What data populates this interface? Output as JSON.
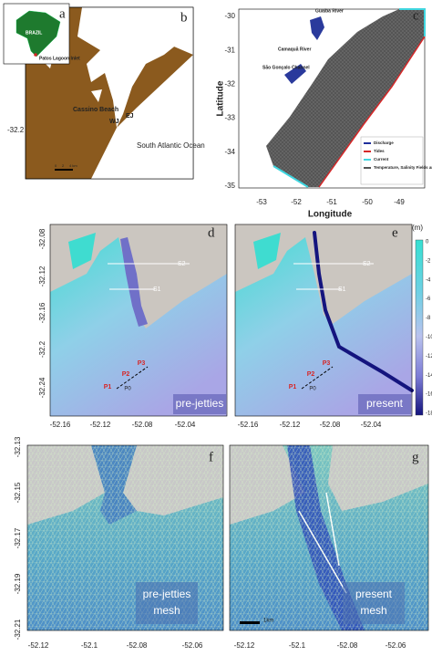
{
  "panel_a": {
    "label": "a",
    "country": "BRAZIL",
    "inlet": "Patos Lagoon Inlet"
  },
  "panel_b": {
    "label": "b",
    "yticks": [
      "-32.2"
    ],
    "places": [
      "Cassino Beach",
      "WJ",
      "EJ",
      "South Atlantic Ocean"
    ],
    "scale": [
      "0",
      "2",
      "4 km"
    ]
  },
  "panel_c": {
    "label": "c",
    "ylabel": "Latitude",
    "xlabel": "Longitude",
    "yticks": [
      "-30",
      "-31",
      "-32",
      "-33",
      "-34",
      "-35"
    ],
    "xticks": [
      "-53",
      "-52",
      "-51",
      "-50",
      "-49"
    ],
    "places": [
      "Guaíba River",
      "Camaquã River",
      "São Gonçalo Channel"
    ],
    "legend": [
      {
        "name": "Discharge",
        "color": "#1f2f9c"
      },
      {
        "name": "Tides",
        "color": "#d62728"
      },
      {
        "name": "Current",
        "color": "#3fd6e0"
      },
      {
        "name": "Temperature, Salinity Fields and Wind effect",
        "color": "#555555"
      }
    ]
  },
  "panel_d": {
    "label": "d",
    "yticks": [
      "-32.08",
      "-32.12",
      "-32.16",
      "-32.2",
      "-32.24"
    ],
    "xticks": [
      "-52.16",
      "-52.12",
      "-52.08",
      "-52.04"
    ],
    "sections": [
      "S2",
      "S1"
    ],
    "points": [
      "P1",
      "P2",
      "P3",
      "P0"
    ],
    "caption": "pre-jetties"
  },
  "panel_e": {
    "label": "e",
    "xticks": [
      "-52.16",
      "-52.12",
      "-52.08",
      "-52.04"
    ],
    "sections": [
      "S2",
      "S1"
    ],
    "points": [
      "P1",
      "P2",
      "P3",
      "P0"
    ],
    "caption": "present"
  },
  "colorbar": {
    "unit": "(m)",
    "ticks": [
      "0",
      "-2",
      "-4",
      "-6",
      "-8",
      "-10",
      "-12",
      "-14",
      "-16",
      "-18"
    ]
  },
  "panel_f": {
    "label": "f",
    "yticks": [
      "-32.13",
      "-32.15",
      "-32.17",
      "-32.19",
      "-32.21"
    ],
    "xticks": [
      "-52.12",
      "-52.1",
      "-52.08",
      "-52.06"
    ],
    "caption": [
      "pre-jetties",
      "mesh"
    ]
  },
  "panel_g": {
    "label": "g",
    "xticks": [
      "-52.12",
      "-52.1",
      "-52.08",
      "-52.06"
    ],
    "caption": [
      "present",
      "mesh"
    ],
    "scale": "1km"
  }
}
